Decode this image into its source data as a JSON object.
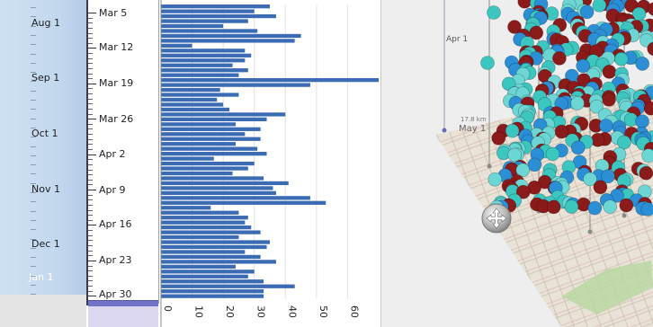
{
  "months_timeline": {
    "labels": [
      "Aug 1",
      "Sep 1",
      "Oct 1",
      "Nov 1",
      "Dec 1",
      "Jan 1"
    ]
  },
  "weeks_timeline": {
    "labels": [
      "Mar 5",
      "Mar 12",
      "Mar 19",
      "Mar 26",
      "Apr 2",
      "Apr 9",
      "Apr 16",
      "Apr 23",
      "Apr 30"
    ]
  },
  "chart_data": {
    "type": "bar",
    "orientation": "horizontal",
    "values": [
      35,
      30,
      37,
      28,
      20,
      31,
      45,
      43,
      10,
      27,
      29,
      27,
      23,
      28,
      25,
      70,
      48,
      19,
      25,
      18,
      20,
      22,
      40,
      34,
      24,
      32,
      27,
      32,
      24,
      31,
      34,
      17,
      30,
      28,
      23,
      33,
      41,
      36,
      37,
      48,
      53,
      16,
      25,
      28,
      27,
      29,
      32,
      25,
      35,
      34,
      27,
      32,
      37,
      24,
      30,
      28,
      33,
      43,
      33,
      33
    ],
    "xlim": [
      0,
      70
    ],
    "x_ticks": [
      "0",
      "10",
      "20",
      "30",
      "40",
      "50",
      "60"
    ],
    "bar_color": "#3a6bb3",
    "grid": true
  },
  "map": {
    "axis_label": "Apr 1",
    "distance_label": "17.8 km",
    "date_label": "May 1",
    "marker_colors": [
      "#8b1a1a",
      "#3cc6c0",
      "#2b8fd6",
      "#6cd6d4"
    ]
  }
}
